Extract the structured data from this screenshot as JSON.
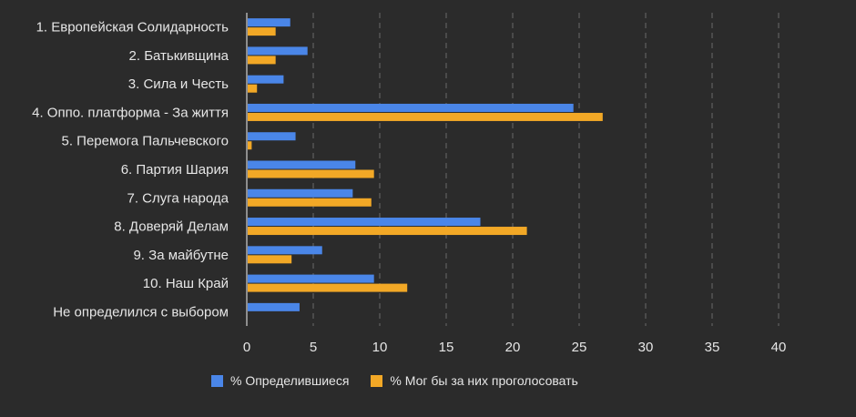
{
  "chart_data": {
    "type": "bar",
    "orientation": "horizontal",
    "categories": [
      "1. Европейская Солидарность",
      "2. Батькивщина",
      "3. Сила и Честь",
      "4. Оппо. платформа - За життя",
      "5. Перемога Пальчевского",
      "6. Партия Шария",
      "7.  Слуга народа",
      "8. Доверяй Делам",
      "9. За майбутне",
      "10. Наш Край",
      "Не определился с выбором"
    ],
    "series": [
      {
        "name": "% Определившиеся",
        "color": "#4a86e8",
        "values": [
          3.2,
          4.5,
          2.7,
          24.5,
          3.6,
          8.1,
          7.9,
          17.5,
          5.6,
          9.5,
          3.9
        ]
      },
      {
        "name": "% Мог бы за них проголосовать",
        "color": "#f2a826",
        "values": [
          2.1,
          2.1,
          0.7,
          26.7,
          0.3,
          9.5,
          9.3,
          21.0,
          3.3,
          12.0,
          null
        ]
      }
    ],
    "xlim": [
      0,
      45
    ],
    "xticks": [
      "0",
      "5",
      "10",
      "15",
      "20",
      "25",
      "30",
      "35",
      "40"
    ],
    "grid": true,
    "legend_position": "bottom"
  }
}
